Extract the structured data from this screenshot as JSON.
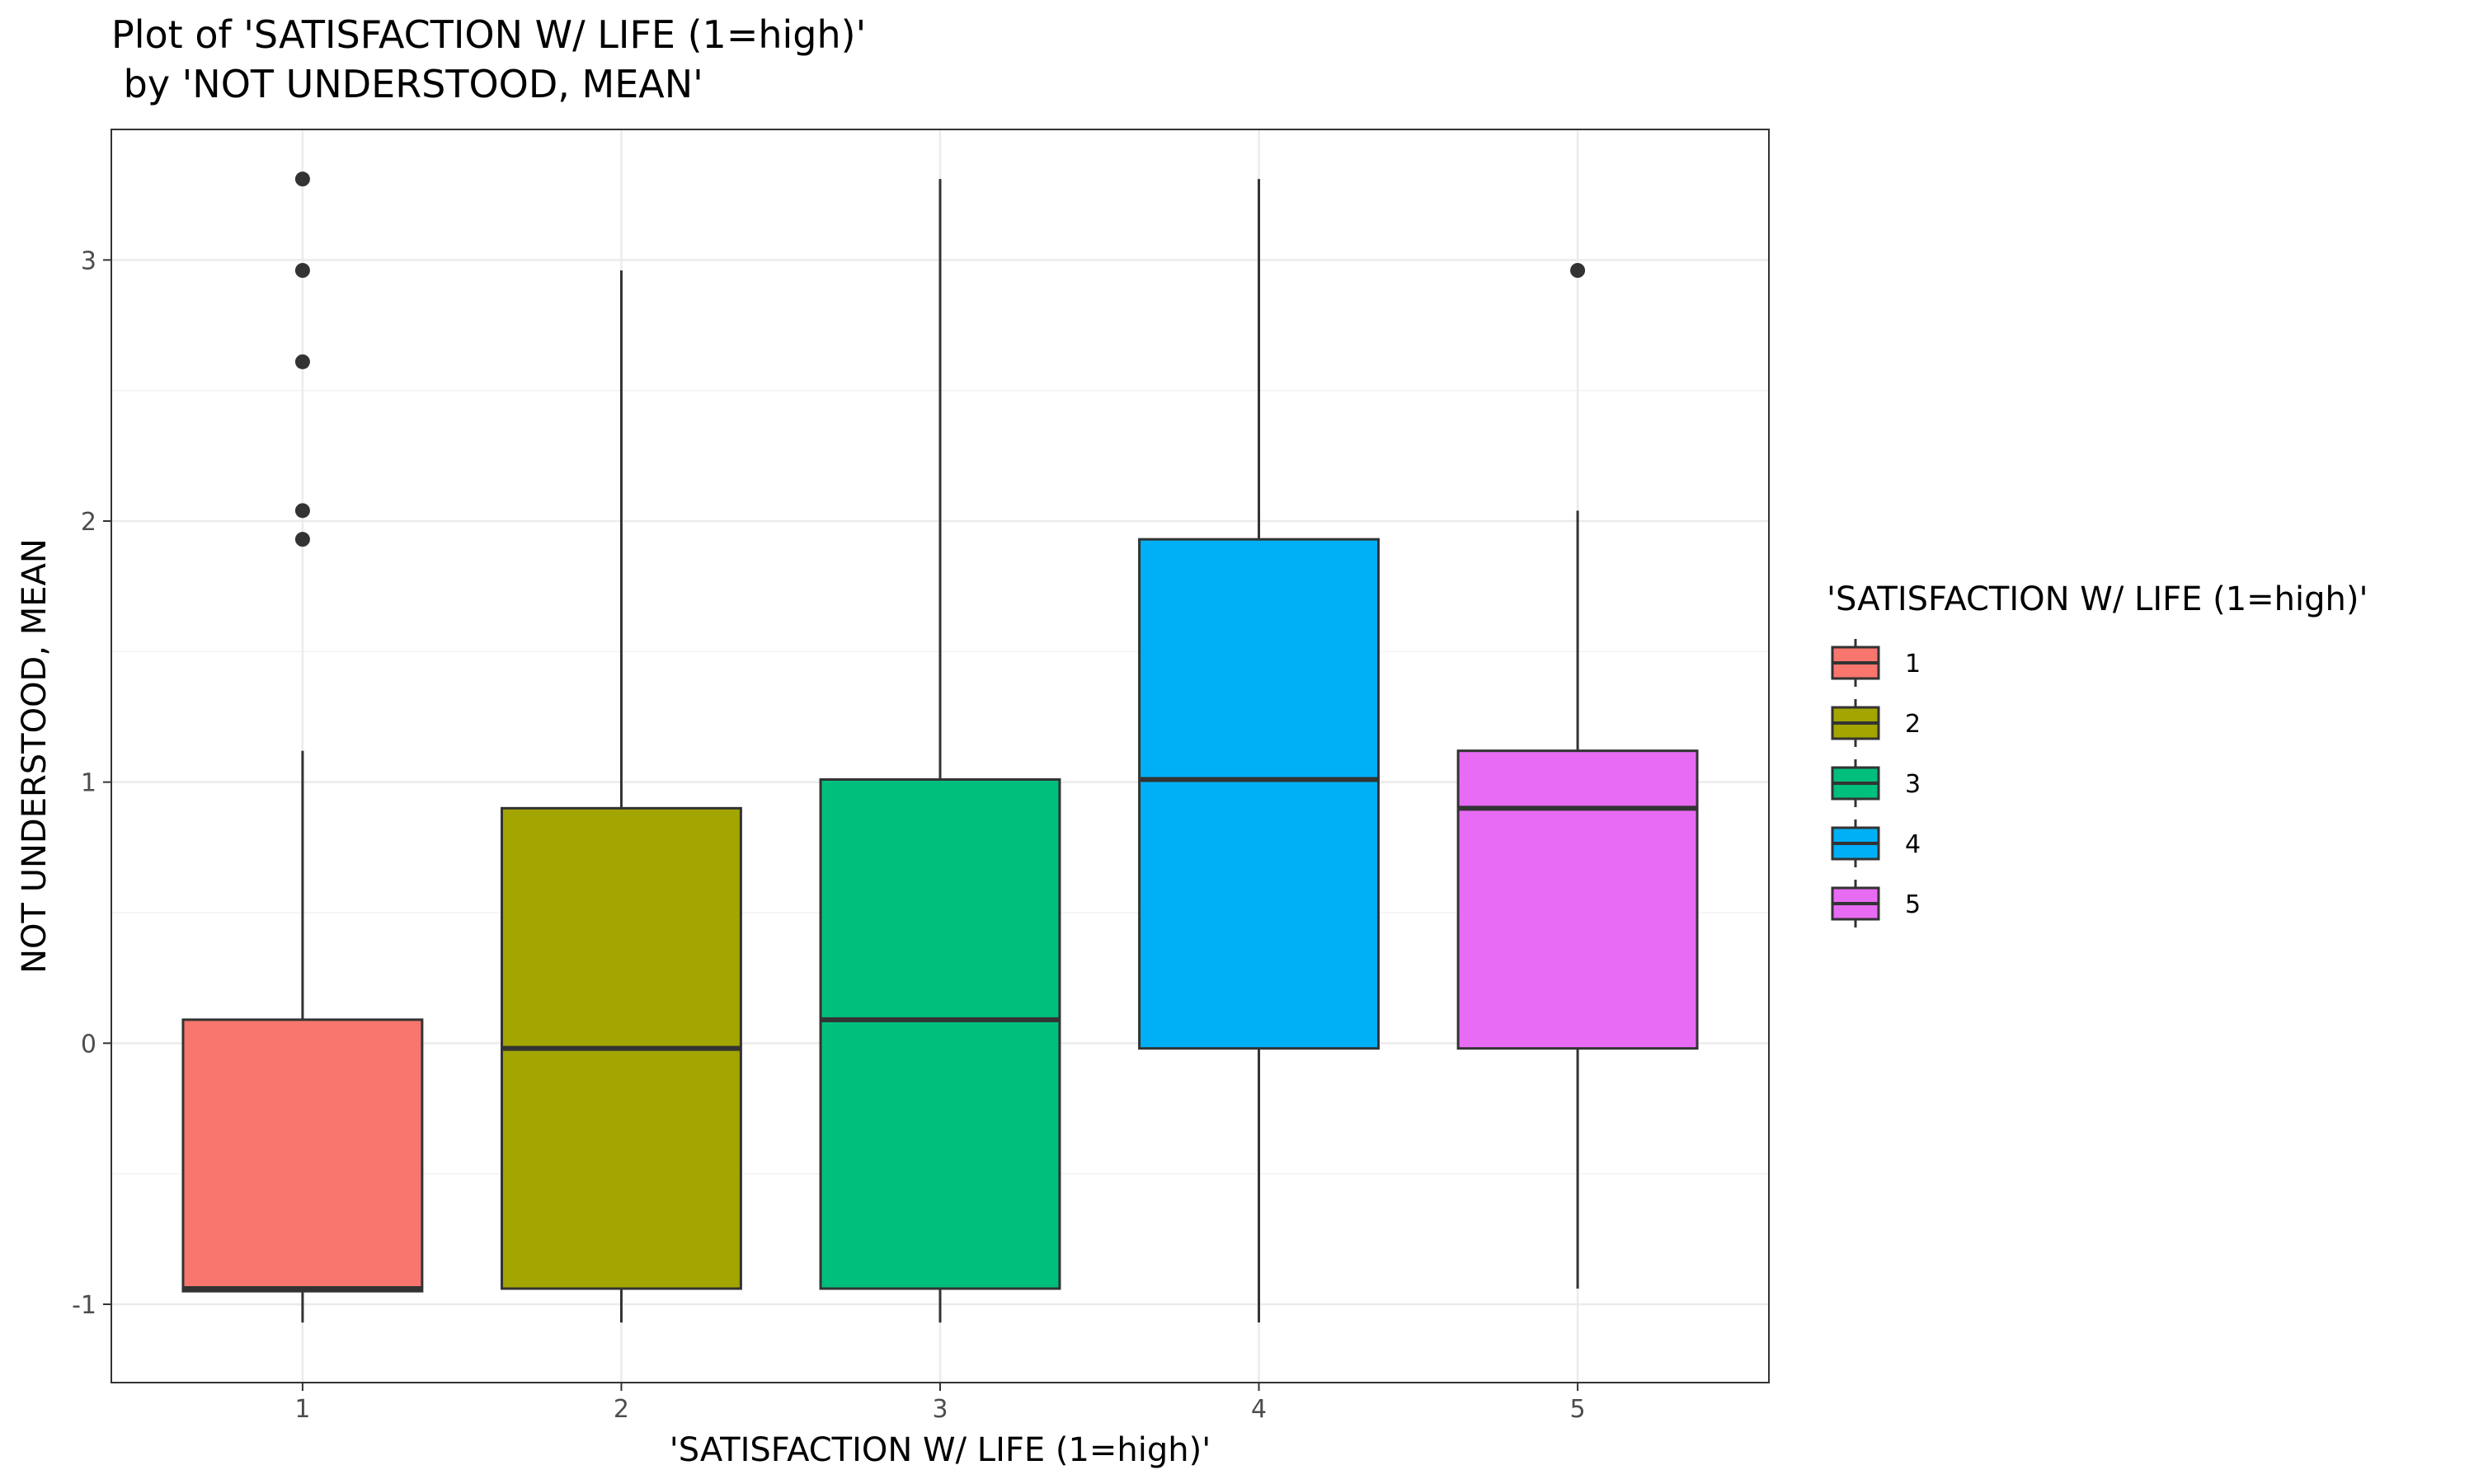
{
  "chart_data": {
    "type": "boxplot",
    "title": [
      "Plot of 'SATISFACTION W/ LIFE (1=high)'",
      " by 'NOT UNDERSTOOD, MEAN'"
    ],
    "xlabel": "'SATISFACTION W/ LIFE (1=high)'",
    "ylabel": "NOT UNDERSTOOD, MEAN",
    "ylim": [
      -1.3,
      3.5
    ],
    "yticks": [
      -1,
      0,
      1,
      2,
      3
    ],
    "grid": true,
    "legend": {
      "title": "'SATISFACTION W/ LIFE (1=high)'",
      "placement": "right"
    },
    "categories": [
      "1",
      "2",
      "3",
      "4",
      "5"
    ],
    "boxes": [
      {
        "name": "1",
        "color": "#F8766D",
        "whisker_low": -1.07,
        "q1": -0.95,
        "median": -0.94,
        "q3": 0.09,
        "whisker_high": 1.12,
        "outliers": [
          1.93,
          2.04,
          2.61,
          2.96,
          3.31
        ]
      },
      {
        "name": "2",
        "color": "#A3A500",
        "whisker_low": -1.07,
        "q1": -0.94,
        "median": -0.02,
        "q3": 0.9,
        "whisker_high": 2.96,
        "outliers": []
      },
      {
        "name": "3",
        "color": "#00BF7D",
        "whisker_low": -1.07,
        "q1": -0.94,
        "median": 0.09,
        "q3": 1.01,
        "whisker_high": 3.31,
        "outliers": []
      },
      {
        "name": "4",
        "color": "#00B0F6",
        "whisker_low": -1.07,
        "q1": -0.02,
        "median": 1.01,
        "q3": 1.93,
        "whisker_high": 3.31,
        "outliers": []
      },
      {
        "name": "5",
        "color": "#E76BF3",
        "whisker_low": -0.94,
        "q1": -0.02,
        "median": 0.9,
        "q3": 1.12,
        "whisker_high": 2.04,
        "outliers": [
          2.96
        ]
      }
    ]
  }
}
